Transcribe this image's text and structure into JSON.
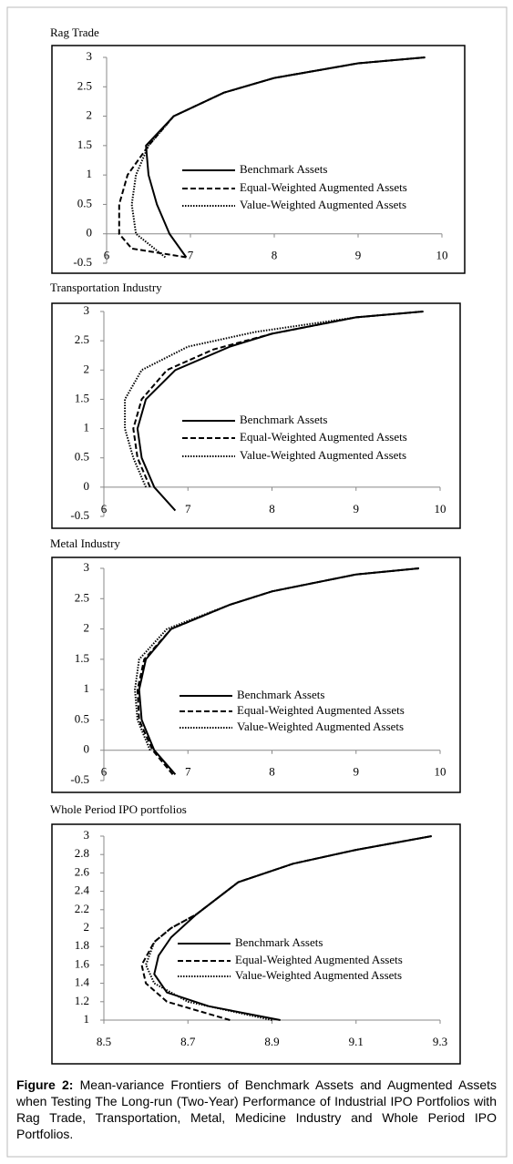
{
  "chart_data": [
    {
      "type": "line",
      "title": "Rag Trade",
      "xlim": [
        6,
        10
      ],
      "xticks": [
        6,
        7,
        8,
        9,
        10
      ],
      "ylim": [
        -0.5,
        3
      ],
      "yticks": [
        -0.5,
        0,
        0.5,
        1,
        1.5,
        2,
        2.5,
        3
      ],
      "series": [
        {
          "name": "Benchmark Assets",
          "color": "#000000",
          "dash": "solid",
          "x": [
            6.95,
            6.75,
            6.6,
            6.5,
            6.47,
            6.8,
            7.4,
            8,
            9,
            9.8
          ],
          "values": [
            -0.4,
            0,
            0.5,
            1,
            1.5,
            2,
            2.4,
            2.65,
            2.9,
            3
          ]
        },
        {
          "name": "Equal-Weighted Augmented Assets",
          "color": "#000000",
          "dash": "dashed",
          "x": [
            6.95,
            6.3,
            6.15,
            6.15,
            6.25,
            6.5,
            6.8,
            7.4,
            8,
            9,
            9.8
          ],
          "values": [
            -0.4,
            -0.25,
            0,
            0.5,
            1,
            1.5,
            2,
            2.4,
            2.65,
            2.9,
            3
          ]
        },
        {
          "name": "Value-Weighted Augmented Assets",
          "color": "#000000",
          "dash": "dotted",
          "x": [
            6.7,
            6.35,
            6.3,
            6.35,
            6.5,
            6.8,
            7.4,
            8,
            9,
            9.8
          ],
          "values": [
            -0.4,
            0,
            0.5,
            1,
            1.5,
            2,
            2.4,
            2.65,
            2.9,
            3
          ]
        }
      ]
    },
    {
      "type": "line",
      "title": "Transportation Industry",
      "xlim": [
        6,
        10
      ],
      "xticks": [
        6,
        7,
        8,
        9,
        10
      ],
      "ylim": [
        -0.5,
        3
      ],
      "yticks": [
        -0.5,
        0,
        0.5,
        1,
        1.5,
        2,
        2.5,
        3
      ],
      "series": [
        {
          "name": "Benchmark Assets",
          "color": "#000000",
          "dash": "solid",
          "x": [
            6.85,
            6.6,
            6.45,
            6.4,
            6.5,
            6.85,
            7.5,
            8,
            9,
            9.8
          ],
          "values": [
            -0.4,
            0,
            0.5,
            1,
            1.5,
            2,
            2.4,
            2.62,
            2.9,
            3
          ]
        },
        {
          "name": "Equal-Weighted Augmented Assets",
          "color": "#000000",
          "dash": "dashed",
          "x": [
            6.55,
            6.4,
            6.35,
            6.45,
            6.75,
            7.3,
            8,
            9,
            9.8
          ],
          "values": [
            0,
            0.5,
            1,
            1.5,
            2,
            2.35,
            2.62,
            2.9,
            3
          ]
        },
        {
          "name": "Value-Weighted Augmented Assets",
          "color": "#000000",
          "dash": "dotted",
          "x": [
            6.5,
            6.35,
            6.25,
            6.25,
            6.45,
            7,
            7.8,
            9,
            9.8
          ],
          "values": [
            0,
            0.5,
            1,
            1.5,
            2,
            2.4,
            2.65,
            2.9,
            3
          ]
        }
      ]
    },
    {
      "type": "line",
      "title": "Metal Industry",
      "xlim": [
        6,
        10
      ],
      "xticks": [
        6,
        7,
        8,
        9,
        10
      ],
      "ylim": [
        -0.5,
        3
      ],
      "yticks": [
        -0.5,
        0,
        0.5,
        1,
        1.5,
        2,
        2.5,
        3
      ],
      "series": [
        {
          "name": "Benchmark Assets",
          "color": "#000000",
          "dash": "solid",
          "x": [
            6.85,
            6.6,
            6.45,
            6.42,
            6.5,
            6.8,
            7.5,
            8,
            9,
            9.75
          ],
          "values": [
            -0.4,
            0,
            0.5,
            1,
            1.5,
            2,
            2.4,
            2.62,
            2.9,
            3
          ]
        },
        {
          "name": "Equal-Weighted Augmented Assets",
          "color": "#000000",
          "dash": "dashed",
          "x": [
            6.82,
            6.58,
            6.42,
            6.4,
            6.48,
            6.8,
            7.5,
            8,
            9,
            9.75
          ],
          "values": [
            -0.4,
            0,
            0.5,
            1,
            1.5,
            2,
            2.4,
            2.62,
            2.9,
            3
          ]
        },
        {
          "name": "Value-Weighted Augmented Assets",
          "color": "#000000",
          "dash": "dotted",
          "x": [
            6.55,
            6.4,
            6.37,
            6.42,
            6.75,
            7.5,
            8,
            9,
            9.75
          ],
          "values": [
            0,
            0.5,
            1,
            1.5,
            2,
            2.4,
            2.62,
            2.9,
            3
          ]
        }
      ]
    },
    {
      "type": "line",
      "title": "Whole Period IPO portfolios",
      "xlim": [
        8.5,
        9.3
      ],
      "xticks": [
        8.5,
        8.7,
        8.9,
        9.1,
        9.3
      ],
      "ylim": [
        1,
        3
      ],
      "yticks": [
        1,
        1.2,
        1.4,
        1.6,
        1.8,
        2,
        2.2,
        2.4,
        2.6,
        2.8,
        3
      ],
      "series": [
        {
          "name": "Benchmark Assets",
          "color": "#000000",
          "dash": "solid",
          "x": [
            8.92,
            8.75,
            8.65,
            8.62,
            8.63,
            8.66,
            8.72,
            8.82,
            8.95,
            9.1,
            9.28
          ],
          "values": [
            1,
            1.15,
            1.3,
            1.5,
            1.7,
            1.9,
            2.15,
            2.5,
            2.7,
            2.85,
            3
          ]
        },
        {
          "name": "Equal-Weighted Augmented Assets",
          "color": "#000000",
          "dash": "dashed",
          "x": [
            8.8,
            8.65,
            8.6,
            8.59,
            8.62,
            8.66,
            8.72,
            8.82,
            8.95,
            9.1,
            9.28
          ],
          "values": [
            1,
            1.2,
            1.4,
            1.6,
            1.85,
            2,
            2.15,
            2.5,
            2.7,
            2.85,
            3
          ]
        },
        {
          "name": "Value-Weighted Augmented Assets",
          "color": "#000000",
          "dash": "dotted",
          "x": [
            8.9,
            8.7,
            8.62,
            8.6,
            8.62,
            8.66,
            8.72,
            8.82,
            8.95,
            9.1,
            9.28
          ],
          "values": [
            1,
            1.2,
            1.4,
            1.6,
            1.85,
            2,
            2.15,
            2.5,
            2.7,
            2.85,
            3
          ]
        }
      ]
    }
  ],
  "caption": {
    "label": "Figure 2:",
    "text": "Mean-variance Frontiers of Benchmark Assets and Augmented Assets when Testing The Long-run (Two-Year) Performance of Industrial IPO Portfolios with Rag Trade, Transportation, Metal, Medicine Industry and Whole Period IPO Portfolios."
  }
}
